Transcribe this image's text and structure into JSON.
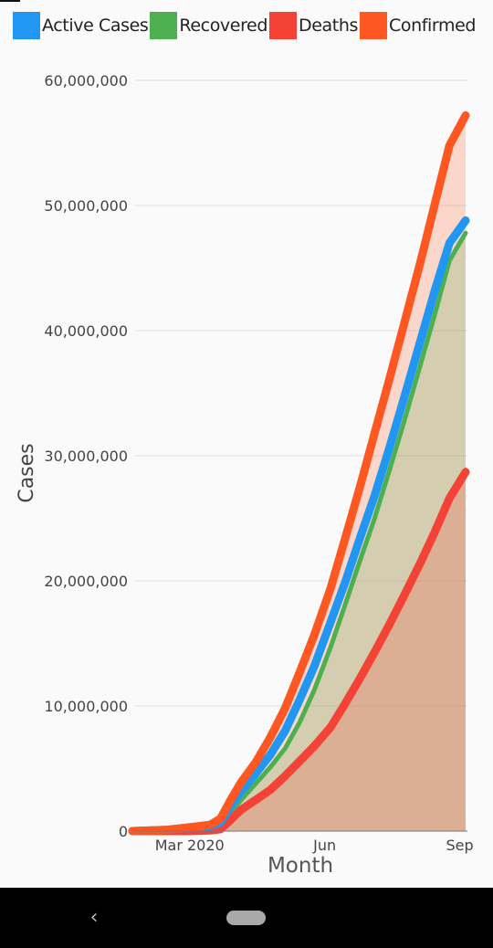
{
  "chart_data": {
    "type": "area",
    "title": "",
    "xlabel": "Month",
    "ylabel": "Cases",
    "ylim": [
      0,
      60000000
    ],
    "yticks": [
      0,
      10000000,
      20000000,
      30000000,
      40000000,
      50000000,
      60000000
    ],
    "ytick_labels": [
      "0",
      "10,000,000",
      "20,000,000",
      "30,000,000",
      "40,000,000",
      "50,000,000",
      "60,000,000"
    ],
    "xticks": [
      {
        "date": "2020-03-01",
        "label": "Mar 2020"
      },
      {
        "date": "2020-06-01",
        "label": "Jun"
      },
      {
        "date": "2020-09-01",
        "label": "Sep"
      }
    ],
    "xlim": [
      "2020-01-22",
      "2020-09-05"
    ],
    "grid": "horizontal",
    "legend": "top",
    "x": [
      "2020-01-22",
      "2020-02-15",
      "2020-03-01",
      "2020-03-15",
      "2020-03-22",
      "2020-03-29",
      "2020-04-05",
      "2020-04-15",
      "2020-04-25",
      "2020-05-05",
      "2020-05-15",
      "2020-05-25",
      "2020-06-05",
      "2020-06-15",
      "2020-06-25",
      "2020-07-05",
      "2020-07-15",
      "2020-07-25",
      "2020-08-05",
      "2020-08-15",
      "2020-08-25",
      "2020-09-05"
    ],
    "series": [
      {
        "name": "Active Cases",
        "color": "#2196f3",
        "values": [
          0,
          100000,
          300000,
          400000,
          700000,
          2000000,
          3200000,
          4600000,
          6100000,
          8000000,
          10500000,
          13200000,
          16700000,
          19900000,
          23400000,
          26800000,
          30600000,
          34600000,
          39100000,
          43200000,
          47000000,
          48800000
        ]
      },
      {
        "name": "Recovered",
        "color": "#4caf50",
        "values": [
          0,
          0,
          0,
          50000,
          200000,
          1400000,
          2500000,
          3800000,
          5100000,
          6600000,
          8700000,
          11300000,
          14700000,
          18100000,
          21600000,
          25000000,
          28800000,
          32700000,
          37200000,
          41300000,
          45600000,
          47800000
        ]
      },
      {
        "name": "Deaths",
        "color": "#f44336",
        "values": [
          0,
          0,
          0,
          50000,
          150000,
          900000,
          1700000,
          2500000,
          3300000,
          4400000,
          5600000,
          6800000,
          8300000,
          10200000,
          12200000,
          14300000,
          16500000,
          18800000,
          21400000,
          23900000,
          26600000,
          28700000
        ]
      },
      {
        "name": "Confirmed",
        "color": "#ff5722",
        "values": [
          0,
          100000,
          300000,
          500000,
          1000000,
          2500000,
          3900000,
          5500000,
          7500000,
          9800000,
          12700000,
          15700000,
          19400000,
          23400000,
          27500000,
          31800000,
          36100000,
          40500000,
          45400000,
          50100000,
          54800000,
          57200000
        ]
      }
    ]
  }
}
